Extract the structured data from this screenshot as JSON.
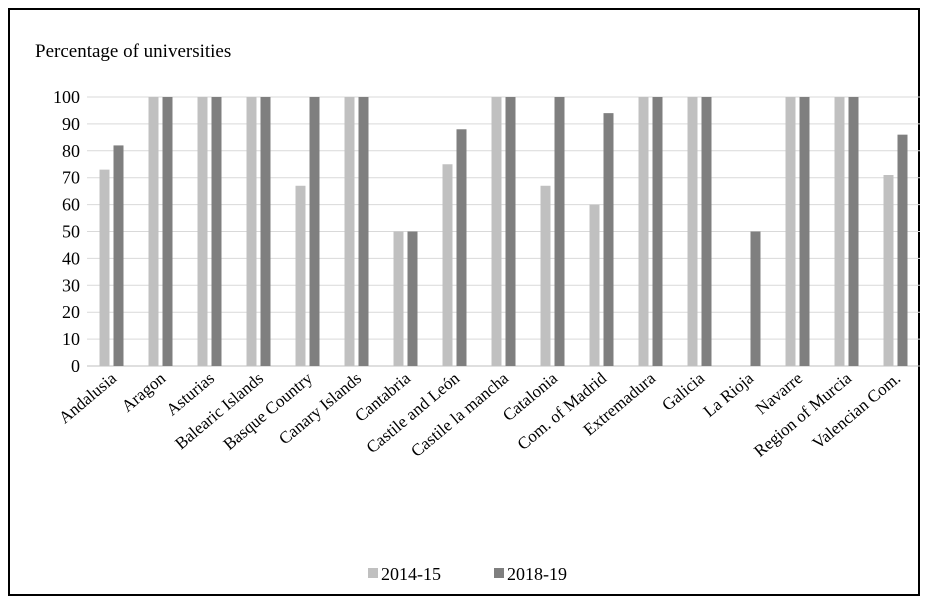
{
  "chart_data": {
    "type": "bar",
    "title": "Percentage of universities",
    "xlabel": "",
    "ylabel": "",
    "ylim": [
      0,
      100
    ],
    "yticks": [
      0,
      10,
      20,
      30,
      40,
      50,
      60,
      70,
      80,
      90,
      100
    ],
    "grid": true,
    "legend": "bottom",
    "categories": [
      "Andalusia",
      "Aragon",
      "Asturias",
      "Balearic Islands",
      "Basque Country",
      "Canary Islands",
      "Cantabria",
      "Castile and León",
      "Castile la mancha",
      "Catalonia",
      "Com. of Madrid",
      "Extremadura",
      "Galicia",
      "La Rioja",
      "Navarre",
      "Region of Murcia",
      "Valencian Com."
    ],
    "series": [
      {
        "name": "2014-15",
        "color": "#c0c0c0",
        "values": [
          73,
          100,
          100,
          100,
          67,
          100,
          50,
          75,
          100,
          67,
          60,
          100,
          100,
          0,
          100,
          100,
          71
        ]
      },
      {
        "name": "2018-19",
        "color": "#7f7f7f",
        "values": [
          82,
          100,
          100,
          100,
          100,
          100,
          50,
          88,
          100,
          100,
          94,
          100,
          100,
          50,
          100,
          100,
          86
        ]
      }
    ]
  }
}
